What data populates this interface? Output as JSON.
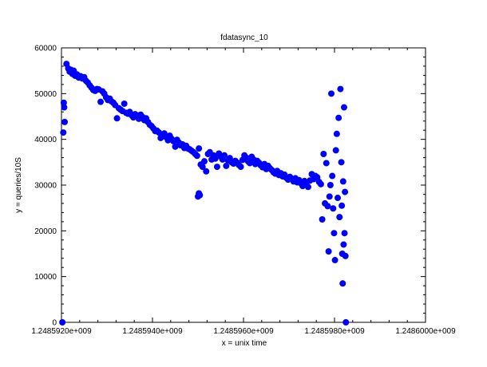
{
  "chart_data": {
    "type": "scatter",
    "title": "fdatasync_10",
    "xlabel": "x = unix time",
    "ylabel": "y = queries/10S",
    "xlim": [
      1248592000,
      1248600000
    ],
    "ylim": [
      0,
      60000
    ],
    "xticks": [
      1248592000,
      1248594000,
      1248596000,
      1248598000,
      1248600000
    ],
    "xtick_labels": [
      "1.2485920e+009",
      "1.2485940e+009",
      "1.2485960e+009",
      "1.2485980e+009",
      "1.2486000e+009"
    ],
    "yticks": [
      0,
      10000,
      20000,
      30000,
      40000,
      50000,
      60000
    ],
    "ytick_labels": [
      "0",
      "10000",
      "20000",
      "30000",
      "40000",
      "50000",
      "60000"
    ],
    "grid": false,
    "marker_color": "#0000ff",
    "series": [
      {
        "points": [
          [
            1248592020,
            0
          ],
          [
            1248592040,
            41500
          ],
          [
            1248592050,
            48000
          ],
          [
            1248592060,
            47000
          ],
          [
            1248592070,
            43800
          ],
          [
            1248592110,
            56500
          ],
          [
            1248592150,
            55500
          ],
          [
            1248592180,
            54800
          ],
          [
            1248592210,
            55200
          ],
          [
            1248592240,
            54300
          ],
          [
            1248592270,
            55000
          ],
          [
            1248592300,
            53900
          ],
          [
            1248592340,
            54200
          ],
          [
            1248592380,
            53500
          ],
          [
            1248592420,
            53800
          ],
          [
            1248592460,
            53300
          ],
          [
            1248592500,
            53600
          ],
          [
            1248592540,
            52800
          ],
          [
            1248592580,
            52400
          ],
          [
            1248592620,
            51800
          ],
          [
            1248592660,
            51300
          ],
          [
            1248592700,
            50800
          ],
          [
            1248592740,
            50600
          ],
          [
            1248592780,
            51000
          ],
          [
            1248592820,
            50900
          ],
          [
            1248592860,
            48200
          ],
          [
            1248592900,
            50500
          ],
          [
            1248592940,
            50000
          ],
          [
            1248592980,
            49200
          ],
          [
            1248593020,
            48600
          ],
          [
            1248593060,
            48900
          ],
          [
            1248593100,
            48300
          ],
          [
            1248593140,
            48000
          ],
          [
            1248593180,
            47500
          ],
          [
            1248593220,
            44600
          ],
          [
            1248593260,
            46800
          ],
          [
            1248593300,
            46500
          ],
          [
            1248593340,
            46200
          ],
          [
            1248593380,
            47800
          ],
          [
            1248593420,
            45800
          ],
          [
            1248593460,
            45600
          ],
          [
            1248593500,
            46000
          ],
          [
            1248593540,
            45300
          ],
          [
            1248593580,
            44800
          ],
          [
            1248593620,
            45500
          ],
          [
            1248593660,
            45100
          ],
          [
            1248593700,
            44500
          ],
          [
            1248593740,
            45400
          ],
          [
            1248593780,
            44900
          ],
          [
            1248593820,
            44200
          ],
          [
            1248593860,
            44600
          ],
          [
            1248593900,
            43800
          ],
          [
            1248593940,
            43200
          ],
          [
            1248593980,
            42900
          ],
          [
            1248594020,
            42400
          ],
          [
            1248594060,
            41800
          ],
          [
            1248594100,
            41900
          ],
          [
            1248594140,
            41500
          ],
          [
            1248594180,
            40300
          ],
          [
            1248594220,
            40700
          ],
          [
            1248594260,
            41300
          ],
          [
            1248594300,
            40500
          ],
          [
            1248594340,
            39800
          ],
          [
            1248594380,
            40800
          ],
          [
            1248594420,
            40100
          ],
          [
            1248594460,
            39600
          ],
          [
            1248594500,
            38400
          ],
          [
            1248594540,
            39900
          ],
          [
            1248594580,
            39300
          ],
          [
            1248594620,
            38700
          ],
          [
            1248594660,
            38900
          ],
          [
            1248594700,
            38100
          ],
          [
            1248594740,
            38600
          ],
          [
            1248594780,
            38000
          ],
          [
            1248594820,
            37800
          ],
          [
            1248594860,
            37500
          ],
          [
            1248594900,
            37200
          ],
          [
            1248594940,
            36800
          ],
          [
            1248594980,
            36400
          ],
          [
            1248595020,
            38000
          ],
          [
            1248595060,
            34500
          ],
          [
            1248595100,
            34000
          ],
          [
            1248595140,
            35200
          ],
          [
            1248595180,
            33000
          ],
          [
            1248595000,
            27500
          ],
          [
            1248595020,
            28200
          ],
          [
            1248595040,
            27800
          ],
          [
            1248595220,
            36800
          ],
          [
            1248595260,
            37200
          ],
          [
            1248595300,
            35600
          ],
          [
            1248595340,
            36500
          ],
          [
            1248595380,
            35800
          ],
          [
            1248595420,
            34000
          ],
          [
            1248595460,
            36900
          ],
          [
            1248595500,
            36200
          ],
          [
            1248595540,
            35600
          ],
          [
            1248595580,
            36500
          ],
          [
            1248595620,
            34200
          ],
          [
            1248595660,
            35400
          ],
          [
            1248595700,
            35900
          ],
          [
            1248595740,
            35000
          ],
          [
            1248595780,
            34700
          ],
          [
            1248595820,
            35300
          ],
          [
            1248595860,
            34900
          ],
          [
            1248595900,
            34400
          ],
          [
            1248595940,
            34000
          ],
          [
            1248595980,
            35500
          ],
          [
            1248596020,
            36500
          ],
          [
            1248596060,
            36000
          ],
          [
            1248596100,
            35200
          ],
          [
            1248596140,
            34800
          ],
          [
            1248596180,
            36200
          ],
          [
            1248596220,
            35600
          ],
          [
            1248596260,
            34600
          ],
          [
            1248596300,
            35300
          ],
          [
            1248596340,
            34900
          ],
          [
            1248596380,
            34300
          ],
          [
            1248596420,
            33900
          ],
          [
            1248596460,
            34600
          ],
          [
            1248596500,
            33500
          ],
          [
            1248596540,
            34200
          ],
          [
            1248596580,
            33700
          ],
          [
            1248596620,
            33300
          ],
          [
            1248596660,
            32800
          ],
          [
            1248596700,
            32500
          ],
          [
            1248596740,
            33100
          ],
          [
            1248596780,
            32200
          ],
          [
            1248596820,
            32600
          ],
          [
            1248596860,
            31900
          ],
          [
            1248596900,
            32300
          ],
          [
            1248596940,
            31600
          ],
          [
            1248596980,
            31200
          ],
          [
            1248597020,
            31800
          ],
          [
            1248597060,
            31400
          ],
          [
            1248597100,
            30800
          ],
          [
            1248597140,
            31500
          ],
          [
            1248597180,
            30600
          ],
          [
            1248597220,
            31100
          ],
          [
            1248597260,
            30400
          ],
          [
            1248597300,
            29800
          ],
          [
            1248597340,
            30900
          ],
          [
            1248597380,
            30300
          ],
          [
            1248597420,
            29600
          ],
          [
            1248597460,
            31000
          ],
          [
            1248597500,
            32400
          ],
          [
            1248597540,
            31300
          ],
          [
            1248597580,
            32000
          ],
          [
            1248597620,
            31700
          ],
          [
            1248597660,
            30700
          ],
          [
            1248597700,
            30200
          ],
          [
            1248597730,
            22500
          ],
          [
            1248597760,
            36800
          ],
          [
            1248597790,
            26000
          ],
          [
            1248597820,
            34800
          ],
          [
            1248597850,
            25400
          ],
          [
            1248597870,
            15500
          ],
          [
            1248597890,
            27500
          ],
          [
            1248597910,
            30000
          ],
          [
            1248597930,
            50000
          ],
          [
            1248597950,
            32000
          ],
          [
            1248597970,
            24900
          ],
          [
            1248597990,
            19500
          ],
          [
            1248598010,
            13600
          ],
          [
            1248598030,
            37600
          ],
          [
            1248598050,
            41200
          ],
          [
            1248598070,
            27200
          ],
          [
            1248598090,
            44700
          ],
          [
            1248598110,
            23000
          ],
          [
            1248598130,
            51000
          ],
          [
            1248598150,
            35000
          ],
          [
            1248598160,
            25500
          ],
          [
            1248598170,
            15000
          ],
          [
            1248598180,
            8500
          ],
          [
            1248598190,
            30800
          ],
          [
            1248598200,
            17000
          ],
          [
            1248598210,
            47000
          ],
          [
            1248598220,
            19500
          ],
          [
            1248598230,
            28500
          ],
          [
            1248598240,
            14500
          ],
          [
            1248598250,
            0
          ]
        ]
      }
    ]
  }
}
